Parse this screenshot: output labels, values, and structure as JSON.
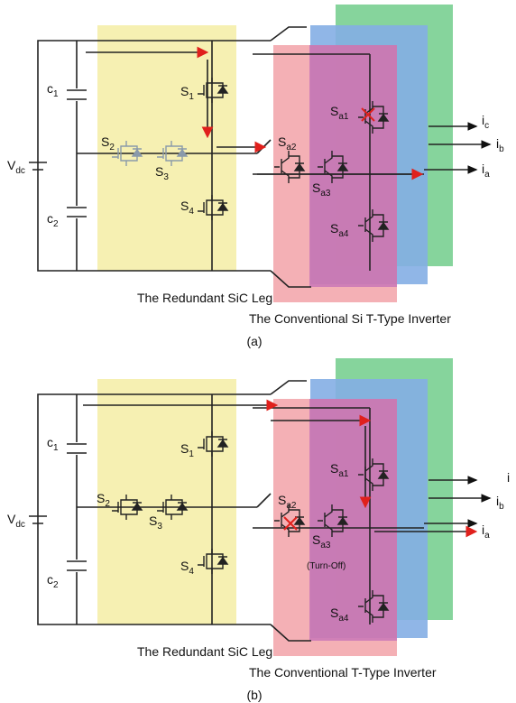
{
  "panels": [
    {
      "caption": "(a)",
      "leg_label": "The Redundant SiC Leg",
      "inverter_label": "The Conventional Si T-Type Inverter",
      "labels": {
        "vdc": {
          "main": "V",
          "sub": "dc"
        },
        "c1": {
          "main": "c",
          "sub": "1"
        },
        "c2": {
          "main": "c",
          "sub": "2"
        },
        "s1": {
          "main": "S",
          "sub": "1"
        },
        "s2": {
          "main": "S",
          "sub": "2"
        },
        "s3": {
          "main": "S",
          "sub": "3"
        },
        "s4": {
          "main": "S",
          "sub": "4"
        },
        "sa1": {
          "main": "S",
          "sub": "a1"
        },
        "sa2": {
          "main": "S",
          "sub": "a2"
        },
        "sa3": {
          "main": "S",
          "sub": "a3"
        },
        "sa4": {
          "main": "S",
          "sub": "a4"
        },
        "ia": {
          "main": "i",
          "sub": "a"
        },
        "ib": {
          "main": "i",
          "sub": "b"
        },
        "ic": {
          "main": "i",
          "sub": "c"
        }
      }
    },
    {
      "caption": "(b)",
      "leg_label": "The Redundant SiC Leg",
      "inverter_label": "The Conventional T-Type Inverter",
      "note": "(Turn-Off)",
      "labels": {
        "vdc": {
          "main": "V",
          "sub": "dc"
        },
        "c1": {
          "main": "c",
          "sub": "1"
        },
        "c2": {
          "main": "c",
          "sub": "2"
        },
        "s1": {
          "main": "S",
          "sub": "1"
        },
        "s2": {
          "main": "S",
          "sub": "2"
        },
        "s3": {
          "main": "S",
          "sub": "3"
        },
        "s4": {
          "main": "S",
          "sub": "4"
        },
        "sa1": {
          "main": "S",
          "sub": "a1"
        },
        "sa2": {
          "main": "S",
          "sub": "a2"
        },
        "sa3": {
          "main": "S",
          "sub": "a3"
        },
        "sa4": {
          "main": "S",
          "sub": "a4"
        },
        "ia": {
          "main": "i",
          "sub": "a"
        },
        "ib": {
          "main": "i",
          "sub": "b"
        },
        "ic": {
          "main": "i"
        }
      }
    }
  ]
}
